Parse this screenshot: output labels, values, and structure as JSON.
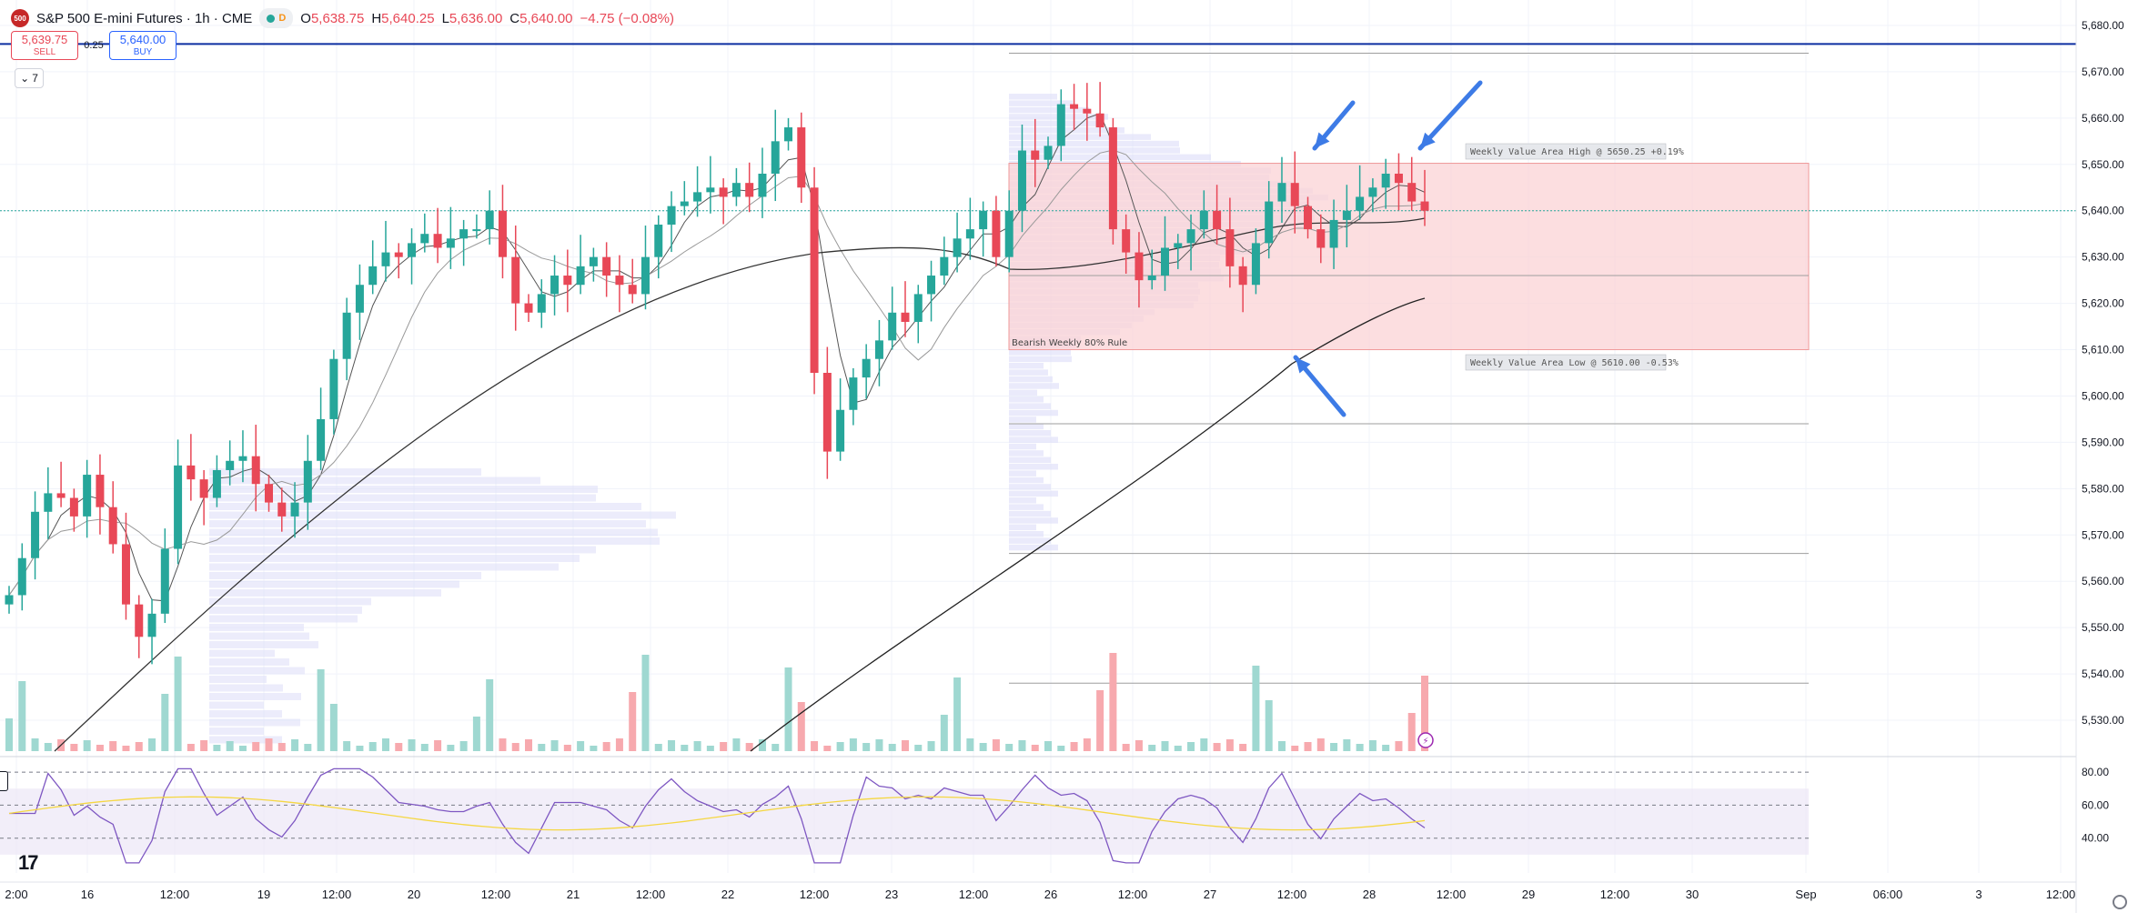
{
  "header": {
    "logo_text": "500",
    "title": "S&P 500 E-mini Futures · 1h · CME",
    "pill_d": "D",
    "ohlc": {
      "o_label": "O",
      "o": "5,638.75",
      "h_label": "H",
      "h": "5,640.25",
      "l_label": "L",
      "l": "5,636.00",
      "c_label": "C",
      "c": "5,640.00",
      "change": "−4.75 (−0.08%)"
    }
  },
  "trade": {
    "sell_price": "5,639.75",
    "sell_label": "SELL",
    "spread": "0.25",
    "buy_price": "5,640.00",
    "buy_label": "BUY"
  },
  "indicator_count": "7",
  "tv_logo": "17",
  "colors": {
    "up": "#26a69a",
    "down": "#e84857",
    "blue_line": "#0d2fa1",
    "arrow": "#3d7be6",
    "vp": "#dcdcf8",
    "value_area": "#fbd3d5",
    "rsi_line": "#7e57c2",
    "rsi_ma": "#f5d742"
  },
  "chart_data": {
    "type": "candlestick",
    "title": "S&P 500 E-mini Futures · 1h · CME",
    "y_ticks": [
      "5,530.00",
      "5,540.00",
      "5,550.00",
      "5,560.00",
      "5,570.00",
      "5,580.00",
      "5,590.00",
      "5,600.00",
      "5,610.00",
      "5,620.00",
      "5,630.00",
      "5,640.00",
      "5,650.00",
      "5,660.00",
      "5,670.00",
      "5,680.00"
    ],
    "ylim": [
      5525,
      5684
    ],
    "x_ticks": [
      "2:00",
      "16",
      "12:00",
      "19",
      "12:00",
      "20",
      "12:00",
      "21",
      "12:00",
      "22",
      "12:00",
      "23",
      "12:00",
      "26",
      "12:00",
      "27",
      "12:00",
      "28",
      "12:00",
      "29",
      "12:00",
      "30",
      "Sep",
      "06:00",
      "3",
      "12:00"
    ],
    "horizontal_line": 5676,
    "dotted_line": 5640,
    "value_area": {
      "high": 5650.25,
      "low": 5610.0,
      "poc": 5626
    },
    "value_area_high_label": "Weekly Value Area High @ 5650.25  +0.19%",
    "value_area_low_label": "Weekly Value Area Low @ 5610.00  -0.53%",
    "value_area_text": "Bearish Weekly 80% Rule",
    "reference_lines": [
      5674,
      5594,
      5566,
      5538
    ],
    "price_path": [
      5557,
      5565,
      5575,
      5579,
      5578,
      5574,
      5583,
      5576,
      5568,
      5555,
      5548,
      5553,
      5567,
      5585,
      5582,
      5578,
      5584,
      5586,
      5587,
      5581,
      5577,
      5574,
      5577,
      5586,
      5595,
      5608,
      5618,
      5624,
      5628,
      5631,
      5630,
      5633,
      5635,
      5632,
      5634,
      5636,
      5636,
      5640,
      5630,
      5620,
      5618,
      5622,
      5626,
      5624,
      5628,
      5630,
      5626,
      5624,
      5622,
      5630,
      5637,
      5641,
      5642,
      5644,
      5645,
      5643,
      5646,
      5643,
      5648,
      5655,
      5658,
      5645,
      5605,
      5588,
      5597,
      5604,
      5608,
      5612,
      5618,
      5616,
      5622,
      5626,
      5630,
      5634,
      5636,
      5640,
      5630,
      5640,
      5653,
      5651,
      5654,
      5663,
      5662,
      5661,
      5658,
      5636,
      5631,
      5625,
      5626,
      5632,
      5633,
      5636,
      5640,
      5636,
      5628,
      5624,
      5633,
      5642,
      5646,
      5641,
      5636,
      5632,
      5638,
      5640,
      5643,
      5645,
      5648,
      5646,
      5642,
      5640
    ],
    "rsi": {
      "levels": [
        80,
        60,
        40
      ],
      "ticks": [
        "80.00",
        "60.00",
        "40.00"
      ],
      "range": [
        20,
        85
      ]
    }
  }
}
